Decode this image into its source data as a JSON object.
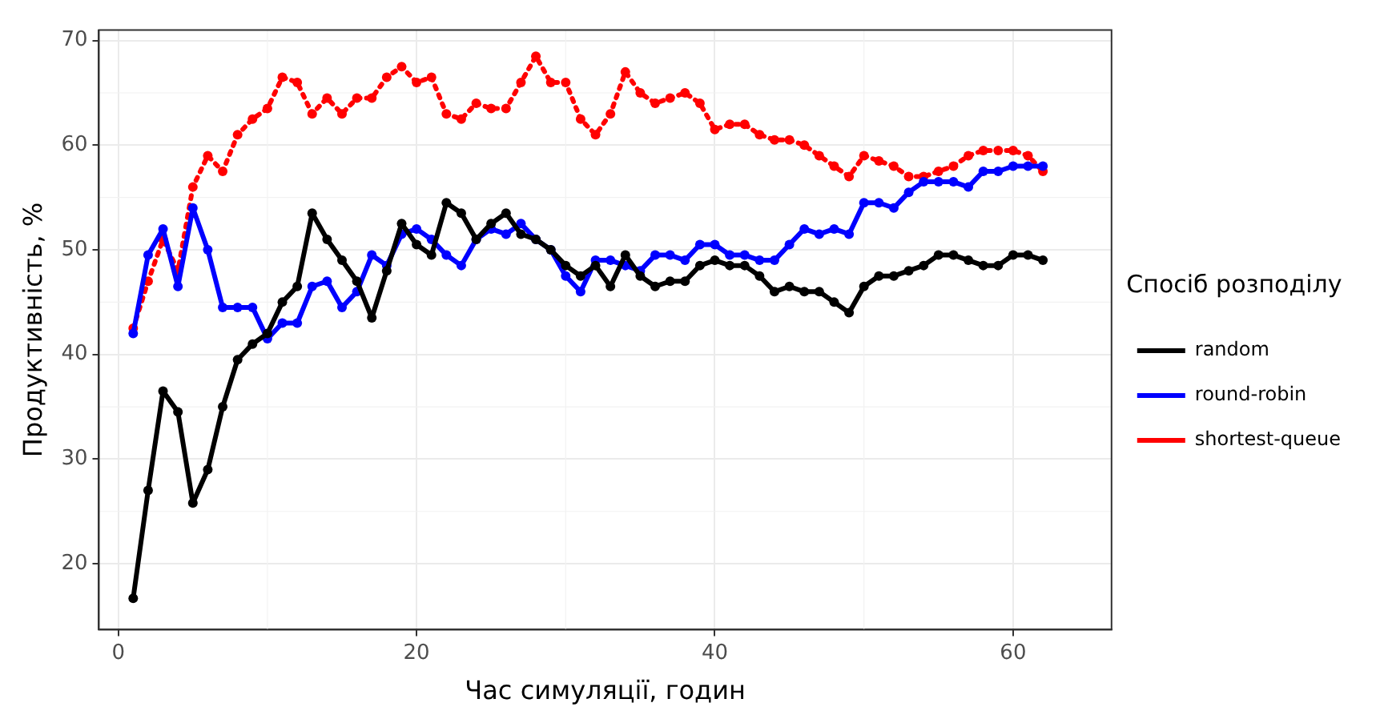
{
  "chart_data": {
    "type": "line",
    "xlabel": "Час симуляції, годин",
    "ylabel": "Продуктивність, %",
    "legend_title": "Спосіб розподілу",
    "x": [
      1,
      2,
      3,
      4,
      5,
      6,
      7,
      8,
      9,
      10,
      11,
      12,
      13,
      14,
      15,
      16,
      17,
      18,
      19,
      20,
      21,
      22,
      23,
      24,
      25,
      26,
      27,
      28,
      29,
      30,
      31,
      32,
      33,
      34,
      35,
      36,
      37,
      38,
      39,
      40,
      41,
      42,
      43,
      44,
      45,
      46,
      47,
      48,
      49,
      50,
      51,
      52,
      53,
      54,
      55,
      56,
      57,
      58,
      59,
      60,
      61,
      62
    ],
    "series": [
      {
        "name": "random",
        "color": "#000000",
        "line_style": "solid",
        "values": [
          16.7,
          27,
          36.5,
          34.5,
          25.8,
          29,
          35,
          39.5,
          41,
          42,
          45,
          46.5,
          53.5,
          51,
          49,
          47,
          43.5,
          48,
          52.5,
          50.5,
          49.5,
          54.5,
          53.5,
          51,
          52.5,
          53.5,
          51.5,
          51,
          50,
          48.5,
          47.5,
          48.5,
          46.5,
          49.5,
          47.5,
          46.5,
          47,
          47,
          48.5,
          49,
          48.5,
          48.5,
          47.5,
          46,
          46.5,
          46,
          46,
          45,
          44,
          46.5,
          47.5,
          47.5,
          48,
          48.5,
          49.5,
          49.5,
          49,
          48.5,
          48.5,
          49.5,
          49.5,
          49
        ]
      },
      {
        "name": "round-robin",
        "color": "#0000ff",
        "line_style": "solid",
        "values": [
          42,
          49.5,
          52,
          46.5,
          54,
          50,
          44.5,
          44.5,
          44.5,
          41.5,
          43,
          43,
          46.5,
          47,
          44.5,
          46,
          49.5,
          48.5,
          51.5,
          52,
          51,
          49.5,
          48.5,
          51,
          52,
          51.5,
          52.5,
          51,
          50,
          47.5,
          46,
          49,
          49,
          48.5,
          48,
          49.5,
          49.5,
          49,
          50.5,
          50.5,
          49.5,
          49.5,
          49,
          49,
          50.5,
          52,
          51.5,
          52,
          51.5,
          54.5,
          54.5,
          54,
          55.5,
          56.5,
          56.5,
          56.5,
          56,
          57.5,
          57.5,
          58,
          58,
          58
        ]
      },
      {
        "name": "shortest-queue",
        "color": "#ff0000",
        "line_style": "dotted",
        "values": [
          42.5,
          47,
          51,
          48,
          56,
          59,
          57.5,
          61,
          62.5,
          63.5,
          66.5,
          66,
          63,
          64.5,
          63,
          64.5,
          64.5,
          66.5,
          67.5,
          66,
          66.5,
          63,
          62.5,
          64,
          63.5,
          63.5,
          66,
          68.5,
          66,
          66,
          62.5,
          61,
          63,
          67,
          65,
          64,
          64.5,
          65,
          64,
          61.5,
          62,
          62,
          61,
          60.5,
          60.5,
          60,
          59,
          58,
          57,
          59,
          58.5,
          58,
          57,
          57,
          57.5,
          58,
          59,
          59.5,
          59.5,
          59.5,
          59,
          57.5
        ]
      }
    ],
    "xlim": [
      -1.3,
      66.6
    ],
    "ylim": [
      13.7,
      71
    ],
    "xticks": [
      0,
      20,
      40,
      60
    ],
    "yticks": [
      20,
      30,
      40,
      50,
      60,
      70
    ],
    "grid": true,
    "legend": "right",
    "marker": "circle"
  }
}
